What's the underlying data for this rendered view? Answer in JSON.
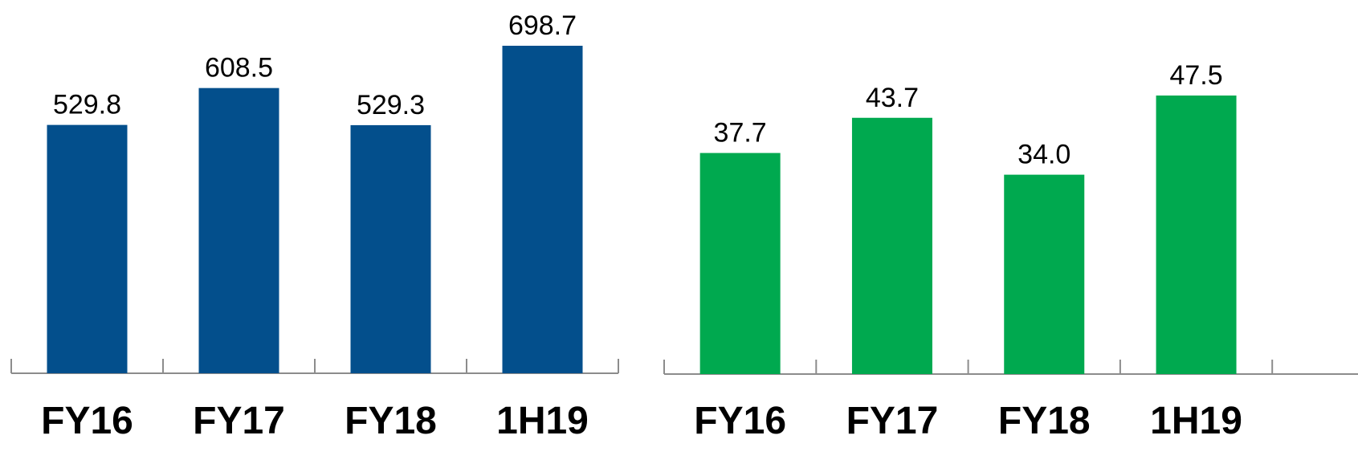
{
  "chart_data": [
    {
      "type": "bar",
      "categories": [
        "FY16",
        "FY17",
        "FY18",
        "1H19"
      ],
      "values": [
        529.8,
        608.5,
        529.3,
        698.7
      ],
      "value_labels": [
        "529.8",
        "608.5",
        "529.3",
        "698.7"
      ],
      "title": "",
      "xlabel": "",
      "ylabel": "",
      "ylim": [
        0,
        698.7
      ],
      "grid": false,
      "legend": "none",
      "color": "#034f8c"
    },
    {
      "type": "bar",
      "categories": [
        "FY16",
        "FY17",
        "FY18",
        "1H19"
      ],
      "values": [
        37.7,
        43.7,
        34.0,
        47.5
      ],
      "value_labels": [
        "37.7",
        "43.7",
        "34.0",
        "47.5"
      ],
      "title": "",
      "xlabel": "",
      "ylabel": "",
      "ylim": [
        0,
        47.5
      ],
      "grid": false,
      "legend": "none",
      "color": "#00a94f"
    }
  ]
}
